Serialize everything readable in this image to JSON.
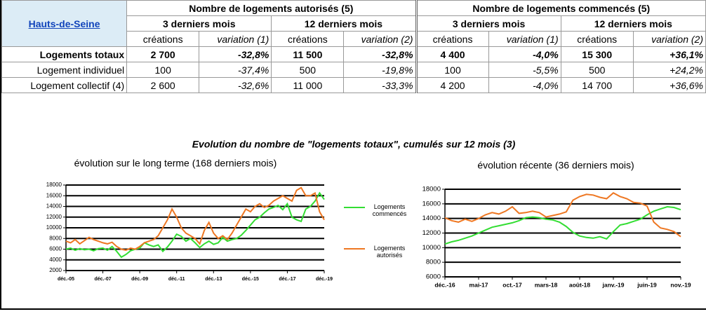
{
  "table": {
    "place": "Hauts-de-Seine",
    "groups": [
      "Nombre de logements autorisés (5)",
      "Nombre de logements commencés (5)"
    ],
    "periods": [
      "3 derniers mois",
      "12 derniers mois",
      "3 derniers mois",
      "12 derniers mois"
    ],
    "columns": [
      "créations",
      "variation (1)",
      "créations",
      "variation (2)",
      "créations",
      "variation (1)",
      "créations",
      "variation (2)"
    ],
    "rows": [
      {
        "label": "Logements totaux",
        "cells": [
          "2 700",
          "-32,8%",
          "11 500",
          "-32,8%",
          "4 400",
          "-4,0%",
          "15 300",
          "+36,1%"
        ]
      },
      {
        "label": "Logement individuel",
        "cells": [
          "100",
          "-37,4%",
          "500",
          "-19,8%",
          "100",
          "-5,5%",
          "500",
          "+24,2%"
        ]
      },
      {
        "label": "Logement collectif (4)",
        "cells": [
          "2 600",
          "-32,6%",
          "11 000",
          "-33,3%",
          "4 200",
          "-4,0%",
          "14 700",
          "+36,6%"
        ]
      }
    ]
  },
  "title": "Evolution du nombre de \"logements totaux\", cumulés sur 12 mois (3)",
  "chart_data": [
    {
      "type": "line",
      "subtitle": "évolution sur le long terme (168 derniers mois)",
      "categories": [
        "déc.-05",
        null,
        null,
        null,
        null,
        null,
        null,
        null,
        "déc.-07",
        null,
        null,
        null,
        null,
        null,
        null,
        null,
        "déc.-09",
        null,
        null,
        null,
        null,
        null,
        null,
        null,
        "déc.-11",
        null,
        null,
        null,
        null,
        null,
        null,
        null,
        "déc.-13",
        null,
        null,
        null,
        null,
        null,
        null,
        null,
        "déc.-15",
        null,
        null,
        null,
        null,
        null,
        null,
        null,
        "déc.-17",
        null,
        null,
        null,
        null,
        null,
        null,
        null,
        "déc.-19"
      ],
      "series": [
        {
          "name": "Logements commencés",
          "color": "#33dd33",
          "values": [
            6000,
            6200,
            5800,
            6100,
            5900,
            6000,
            5700,
            6100,
            6200,
            5800,
            6500,
            5600,
            4500,
            5000,
            5700,
            6000,
            6200,
            7200,
            6800,
            6500,
            6800,
            5600,
            6400,
            7500,
            8800,
            8400,
            7500,
            8000,
            7200,
            6300,
            7000,
            7500,
            6900,
            7200,
            8200,
            7500,
            7800,
            8000,
            8600,
            9500,
            10500,
            11500,
            12000,
            12800,
            13500,
            13800,
            14200,
            13400,
            14500,
            12000,
            11500,
            11200,
            13500,
            14000,
            15000,
            16500,
            15300
          ]
        },
        {
          "name": "Logements autorisés",
          "color": "#ee7722",
          "values": [
            7500,
            7200,
            7800,
            7000,
            7600,
            8200,
            7800,
            7500,
            7200,
            7000,
            7300,
            6500,
            6000,
            5800,
            6200,
            6000,
            6500,
            7200,
            7500,
            7800,
            8500,
            10000,
            11500,
            13500,
            12000,
            10000,
            9000,
            8500,
            8000,
            7000,
            9500,
            11000,
            9000,
            8000,
            8500,
            7800,
            9000,
            10500,
            12000,
            13500,
            13000,
            14000,
            14500,
            13800,
            14200,
            15000,
            15500,
            16000,
            15500,
            15000,
            17000,
            17500,
            16000,
            16000,
            16500,
            13000,
            11500
          ]
        }
      ],
      "ylim": [
        2000,
        18000
      ],
      "yticks": [
        2000,
        4000,
        6000,
        8000,
        10000,
        12000,
        14000,
        16000,
        18000
      ],
      "grid": true
    },
    {
      "type": "line",
      "subtitle": "évolution récente (36 derniers mois)",
      "categories": [
        "déc.-16",
        null,
        null,
        null,
        null,
        "mai-17",
        null,
        null,
        null,
        null,
        "oct.-17",
        null,
        null,
        null,
        null,
        "mars-18",
        null,
        null,
        null,
        null,
        "août-18",
        null,
        null,
        null,
        null,
        "janv.-19",
        null,
        null,
        null,
        null,
        "juin-19",
        null,
        null,
        null,
        null,
        "nov.-19"
      ],
      "series": [
        {
          "name": "Logements commencés",
          "color": "#33dd33",
          "values": [
            10500,
            10800,
            11000,
            11300,
            11600,
            12000,
            12400,
            12800,
            13000,
            13200,
            13400,
            13700,
            14100,
            14200,
            14100,
            13900,
            13800,
            13500,
            12900,
            12100,
            11600,
            11400,
            11300,
            11500,
            11200,
            12200,
            13100,
            13300,
            13600,
            13900,
            14500,
            15000,
            15300,
            15600,
            15500,
            15200
          ]
        },
        {
          "name": "Logements autorisés",
          "color": "#ee7722",
          "values": [
            14100,
            13700,
            13500,
            13900,
            13600,
            14000,
            14500,
            14800,
            14600,
            15000,
            15600,
            14700,
            14800,
            15000,
            14800,
            14200,
            14400,
            14600,
            14900,
            16500,
            17000,
            17300,
            17200,
            16900,
            16700,
            17500,
            17000,
            16700,
            16200,
            16100,
            15700,
            13500,
            12700,
            12500,
            12200,
            11500
          ]
        }
      ],
      "ylim": [
        6000,
        18000
      ],
      "yticks": [
        6000,
        8000,
        10000,
        12000,
        14000,
        16000,
        18000
      ],
      "grid": true
    }
  ]
}
